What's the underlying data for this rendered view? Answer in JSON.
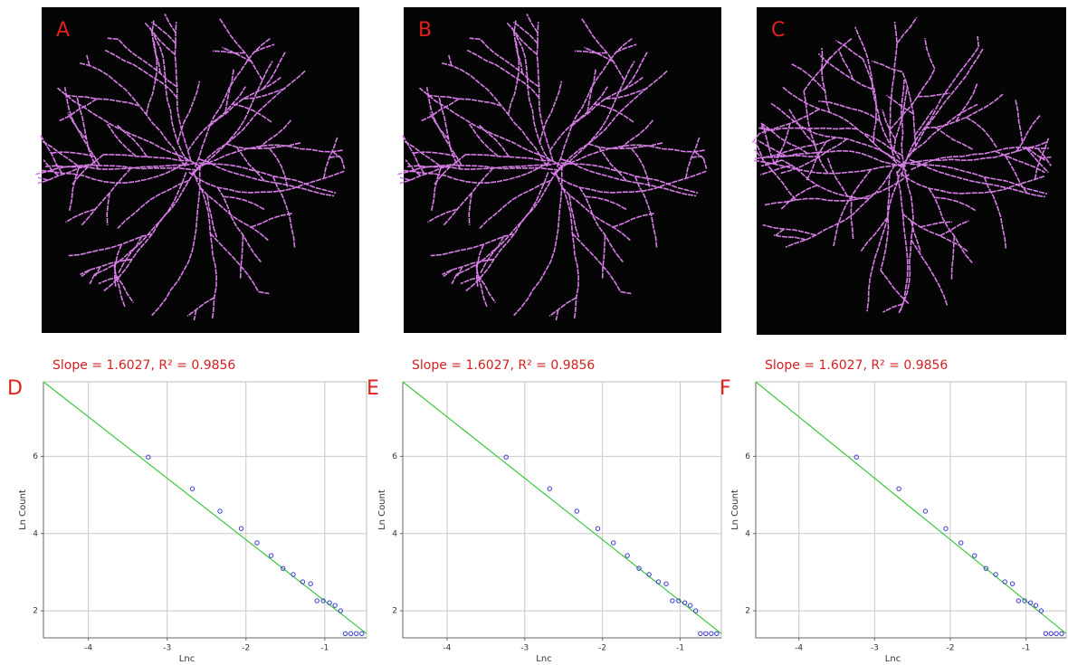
{
  "panels": [
    {
      "label": "A"
    },
    {
      "label": "B"
    },
    {
      "label": "C"
    }
  ],
  "chart_data": [
    {
      "type": "scatter",
      "panel_label": "D",
      "title": "Slope = 1.6027, R² = 0.9856",
      "x_label": "Lnc",
      "y_label": "Ln Count",
      "x": [
        -3.24,
        -2.68,
        -2.33,
        -2.06,
        -1.86,
        -1.68,
        -1.53,
        -1.4,
        -1.28,
        -1.18,
        -1.1,
        -1.02,
        -0.94,
        -0.87,
        -0.8,
        -0.74,
        -0.67,
        -0.6,
        -0.53
      ],
      "values": [
        5.98,
        5.16,
        4.58,
        4.13,
        3.76,
        3.43,
        3.1,
        2.94,
        2.75,
        2.7,
        2.26,
        2.26,
        2.21,
        2.14,
        2.0,
        1.41,
        1.41,
        1.41,
        1.41
      ],
      "color": "#3a3ad0",
      "fit": {
        "x": [
          -4.57,
          -0.47
        ],
        "values": [
          7.93,
          1.41
        ],
        "color": "#3cc83c"
      },
      "xlim": [
        -4.57,
        -0.47
      ],
      "ylim": [
        1.3,
        7.93
      ],
      "xticks": [
        -4,
        -3,
        -2,
        -1
      ],
      "yticks": [
        2,
        4,
        6
      ],
      "grid": true
    },
    {
      "type": "scatter",
      "panel_label": "E",
      "title": "Slope = 1.6027, R² = 0.9856",
      "x_label": "Lnc",
      "y_label": "Ln Count",
      "x": [
        -3.24,
        -2.68,
        -2.33,
        -2.06,
        -1.86,
        -1.68,
        -1.53,
        -1.4,
        -1.28,
        -1.18,
        -1.1,
        -1.02,
        -0.94,
        -0.87,
        -0.8,
        -0.74,
        -0.67,
        -0.6,
        -0.53
      ],
      "values": [
        5.98,
        5.16,
        4.58,
        4.13,
        3.76,
        3.43,
        3.1,
        2.94,
        2.75,
        2.7,
        2.26,
        2.26,
        2.21,
        2.14,
        2.0,
        1.41,
        1.41,
        1.41,
        1.41
      ],
      "color": "#3a3ad0",
      "fit": {
        "x": [
          -4.57,
          -0.47
        ],
        "values": [
          7.93,
          1.41
        ],
        "color": "#3cc83c"
      },
      "xlim": [
        -4.57,
        -0.47
      ],
      "ylim": [
        1.3,
        7.93
      ],
      "xticks": [
        -4,
        -3,
        -2,
        -1
      ],
      "yticks": [
        2,
        4,
        6
      ],
      "grid": true
    },
    {
      "type": "scatter",
      "panel_label": "F",
      "title": "Slope = 1.6027, R² = 0.9856",
      "x_label": "Lnc",
      "y_label": "Ln Count",
      "x": [
        -3.24,
        -2.68,
        -2.33,
        -2.06,
        -1.86,
        -1.68,
        -1.53,
        -1.4,
        -1.28,
        -1.18,
        -1.1,
        -1.02,
        -0.94,
        -0.87,
        -0.8,
        -0.74,
        -0.67,
        -0.6,
        -0.53
      ],
      "values": [
        5.98,
        5.16,
        4.58,
        4.13,
        3.76,
        3.43,
        3.1,
        2.94,
        2.75,
        2.7,
        2.26,
        2.26,
        2.21,
        2.14,
        2.0,
        1.41,
        1.41,
        1.41,
        1.41
      ],
      "color": "#3a3ad0",
      "fit": {
        "x": [
          -4.57,
          -0.47
        ],
        "values": [
          7.93,
          1.41
        ],
        "color": "#3cc83c"
      },
      "xlim": [
        -4.57,
        -0.47
      ],
      "ylim": [
        1.3,
        7.93
      ],
      "xticks": [
        -4,
        -3,
        -2,
        -1
      ],
      "yticks": [
        2,
        4,
        6
      ],
      "grid": true
    }
  ]
}
